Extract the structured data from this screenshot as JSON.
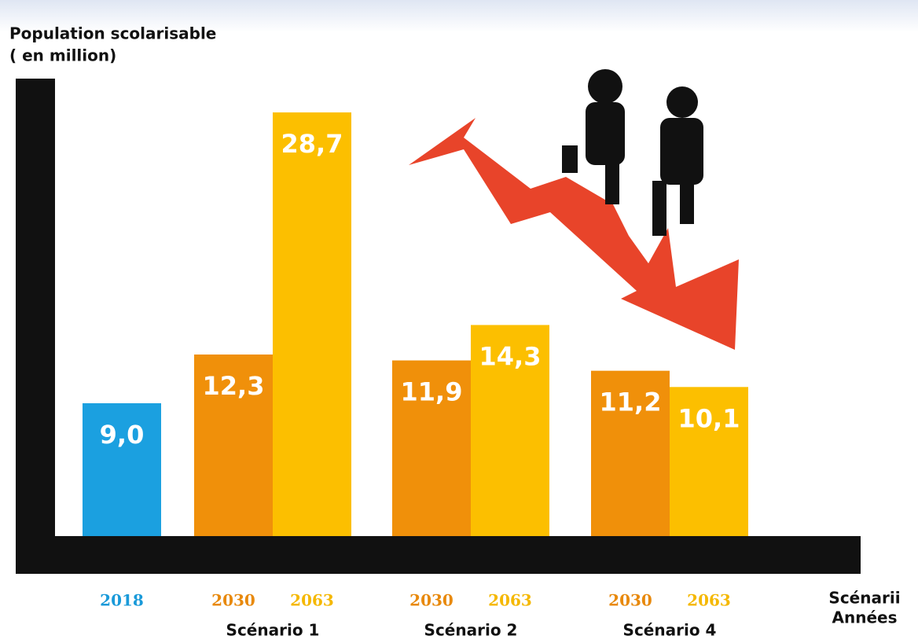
{
  "chart_data": {
    "type": "bar",
    "y_label_lines": [
      "Population scolarisable",
      "( en million)"
    ],
    "x_label_lines": [
      "Scénarii",
      "Années"
    ],
    "categories": [
      null,
      "Scénario 1",
      "Scénario 2",
      "Scénario 4"
    ],
    "series": [
      {
        "name": "2018",
        "color": "#1ba0e0",
        "values": [
          9.0,
          null,
          null,
          null
        ],
        "value_labels": [
          "9,0",
          null,
          null,
          null
        ]
      },
      {
        "name": "2030",
        "color": "#f0900a",
        "values": [
          null,
          12.3,
          11.9,
          11.2
        ],
        "value_labels": [
          null,
          "12,3",
          "11,9",
          "11,2"
        ]
      },
      {
        "name": "2063",
        "color": "#fcbf00",
        "values": [
          null,
          28.7,
          14.3,
          10.1
        ],
        "value_labels": [
          null,
          "28,7",
          "14,3",
          "10,1"
        ]
      }
    ]
  }
}
